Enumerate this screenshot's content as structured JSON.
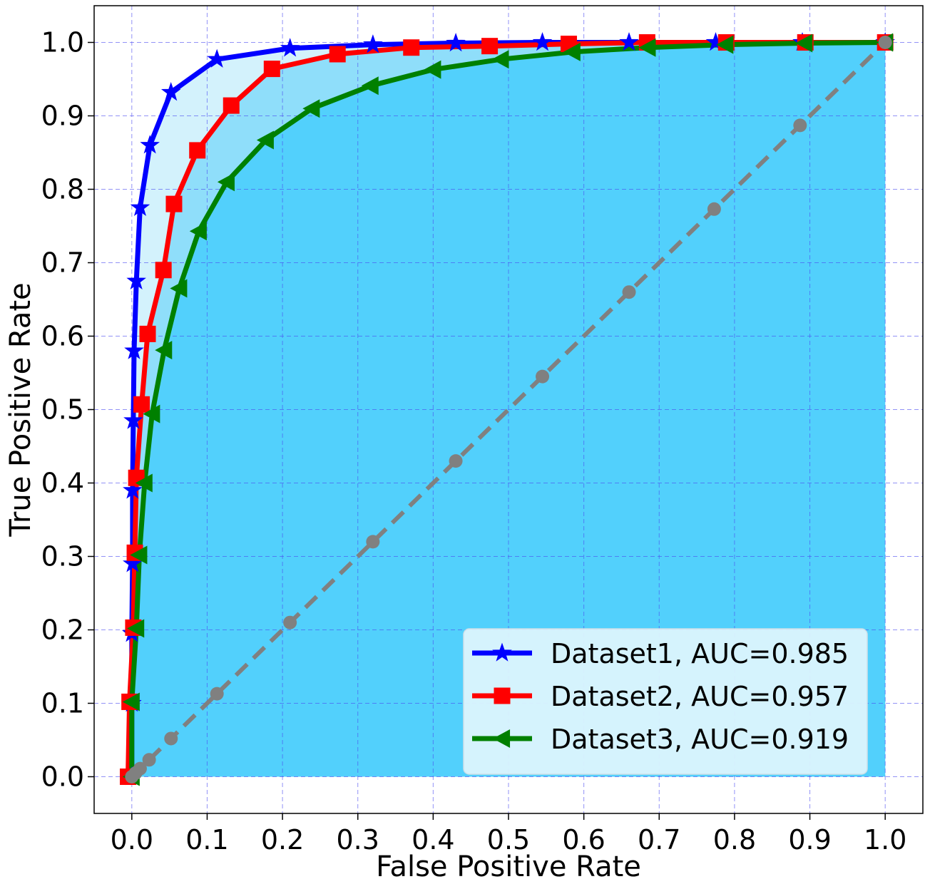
{
  "chart_data": {
    "type": "line",
    "title": "",
    "xlabel": "False Positive Rate",
    "ylabel": "True Positive Rate",
    "xlim": [
      -0.05,
      1.05
    ],
    "ylim": [
      -0.05,
      1.05
    ],
    "x_ticks": [
      "0.0",
      "0.1",
      "0.2",
      "0.3",
      "0.4",
      "0.5",
      "0.6",
      "0.7",
      "0.8",
      "0.9",
      "1.0"
    ],
    "y_ticks": [
      "0.0",
      "0.1",
      "0.2",
      "0.3",
      "0.4",
      "0.5",
      "0.6",
      "0.7",
      "0.8",
      "0.9",
      "1.0"
    ],
    "grid": true,
    "legend_position": "bottom-right",
    "series": [
      {
        "name": "Dataset1, AUC=0.985",
        "color": "#0000ff",
        "marker": "star",
        "fill": "#d3f2fc",
        "x": [
          0.0,
          0.0,
          0.0,
          0.001,
          0.001,
          0.002,
          0.003,
          0.006,
          0.011,
          0.024,
          0.052,
          0.113,
          0.21,
          0.32,
          0.43,
          0.545,
          0.66,
          0.775,
          0.89,
          1.0
        ],
        "y": [
          0.0,
          0.1,
          0.195,
          0.29,
          0.39,
          0.485,
          0.58,
          0.675,
          0.775,
          0.86,
          0.932,
          0.977,
          0.992,
          0.997,
          0.999,
          1.0,
          1.0,
          1.0,
          1.0,
          1.0
        ]
      },
      {
        "name": "Dataset2, AUC=0.957",
        "color": "#ff0000",
        "marker": "square",
        "fill": "#8fdefa",
        "x": [
          -0.005,
          -0.003,
          0.002,
          0.004,
          0.006,
          0.013,
          0.021,
          0.042,
          0.056,
          0.087,
          0.132,
          0.186,
          0.273,
          0.371,
          0.475,
          0.58,
          0.684,
          0.789,
          0.894,
          1.0
        ],
        "y": [
          0.0,
          0.102,
          0.203,
          0.305,
          0.407,
          0.507,
          0.603,
          0.69,
          0.78,
          0.853,
          0.914,
          0.964,
          0.984,
          0.993,
          0.995,
          0.998,
          1.0,
          1.0,
          1.0,
          1.0
        ]
      },
      {
        "name": "Dataset3, AUC=0.919",
        "color": "#008000",
        "marker": "triangle-left",
        "fill": "#52d0fc",
        "x": [
          0.0,
          0.0,
          0.006,
          0.01,
          0.017,
          0.027,
          0.043,
          0.063,
          0.089,
          0.126,
          0.178,
          0.239,
          0.317,
          0.4,
          0.49,
          0.585,
          0.685,
          0.788,
          0.893,
          1.0
        ],
        "y": [
          0.0,
          0.102,
          0.202,
          0.302,
          0.4,
          0.494,
          0.581,
          0.665,
          0.743,
          0.81,
          0.867,
          0.91,
          0.941,
          0.963,
          0.977,
          0.987,
          0.993,
          0.997,
          0.999,
          1.0
        ]
      },
      {
        "name": "",
        "color": "#808080",
        "marker": "circle",
        "dashed": true,
        "x": [
          0.0,
          0.005,
          0.011,
          0.023,
          0.052,
          0.113,
          0.21,
          0.32,
          0.43,
          0.545,
          0.66,
          0.773,
          0.887,
          1.0
        ],
        "y": [
          0.0,
          0.005,
          0.011,
          0.023,
          0.052,
          0.113,
          0.21,
          0.32,
          0.43,
          0.545,
          0.66,
          0.773,
          0.887,
          1.0
        ]
      }
    ]
  }
}
